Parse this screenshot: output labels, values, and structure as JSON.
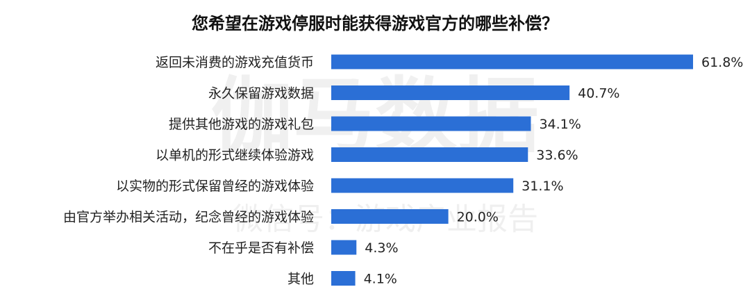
{
  "watermark": {
    "main": "伽马数据",
    "sub": "微信号：游戏产业报告"
  },
  "colors": {
    "bar": "#2b6fd6",
    "text": "#222222",
    "title": "#111111"
  },
  "chart_data": {
    "type": "bar",
    "orientation": "horizontal",
    "title": "您希望在游戏停服时能获得游戏官方的哪些补偿？",
    "categories": [
      "返回未消费的游戏充值货币",
      "永久保留游戏数据",
      "提供其他游戏的游戏礼包",
      "以单机的形式继续体验游戏",
      "以实物的形式保留曾经的游戏体验",
      "由官方举办相关活动，纪念曾经的游戏体验",
      "不在乎是否有补偿",
      "其他"
    ],
    "values": [
      61.8,
      40.7,
      34.1,
      33.6,
      31.1,
      20.0,
      4.3,
      4.1
    ],
    "labels": [
      "61.8%",
      "40.7%",
      "34.1%",
      "33.6%",
      "31.1%",
      "20.0%",
      "4.3%",
      "4.1%"
    ],
    "unit": "%",
    "xlim": [
      0,
      61.8
    ],
    "grid": false,
    "legend": "none"
  }
}
